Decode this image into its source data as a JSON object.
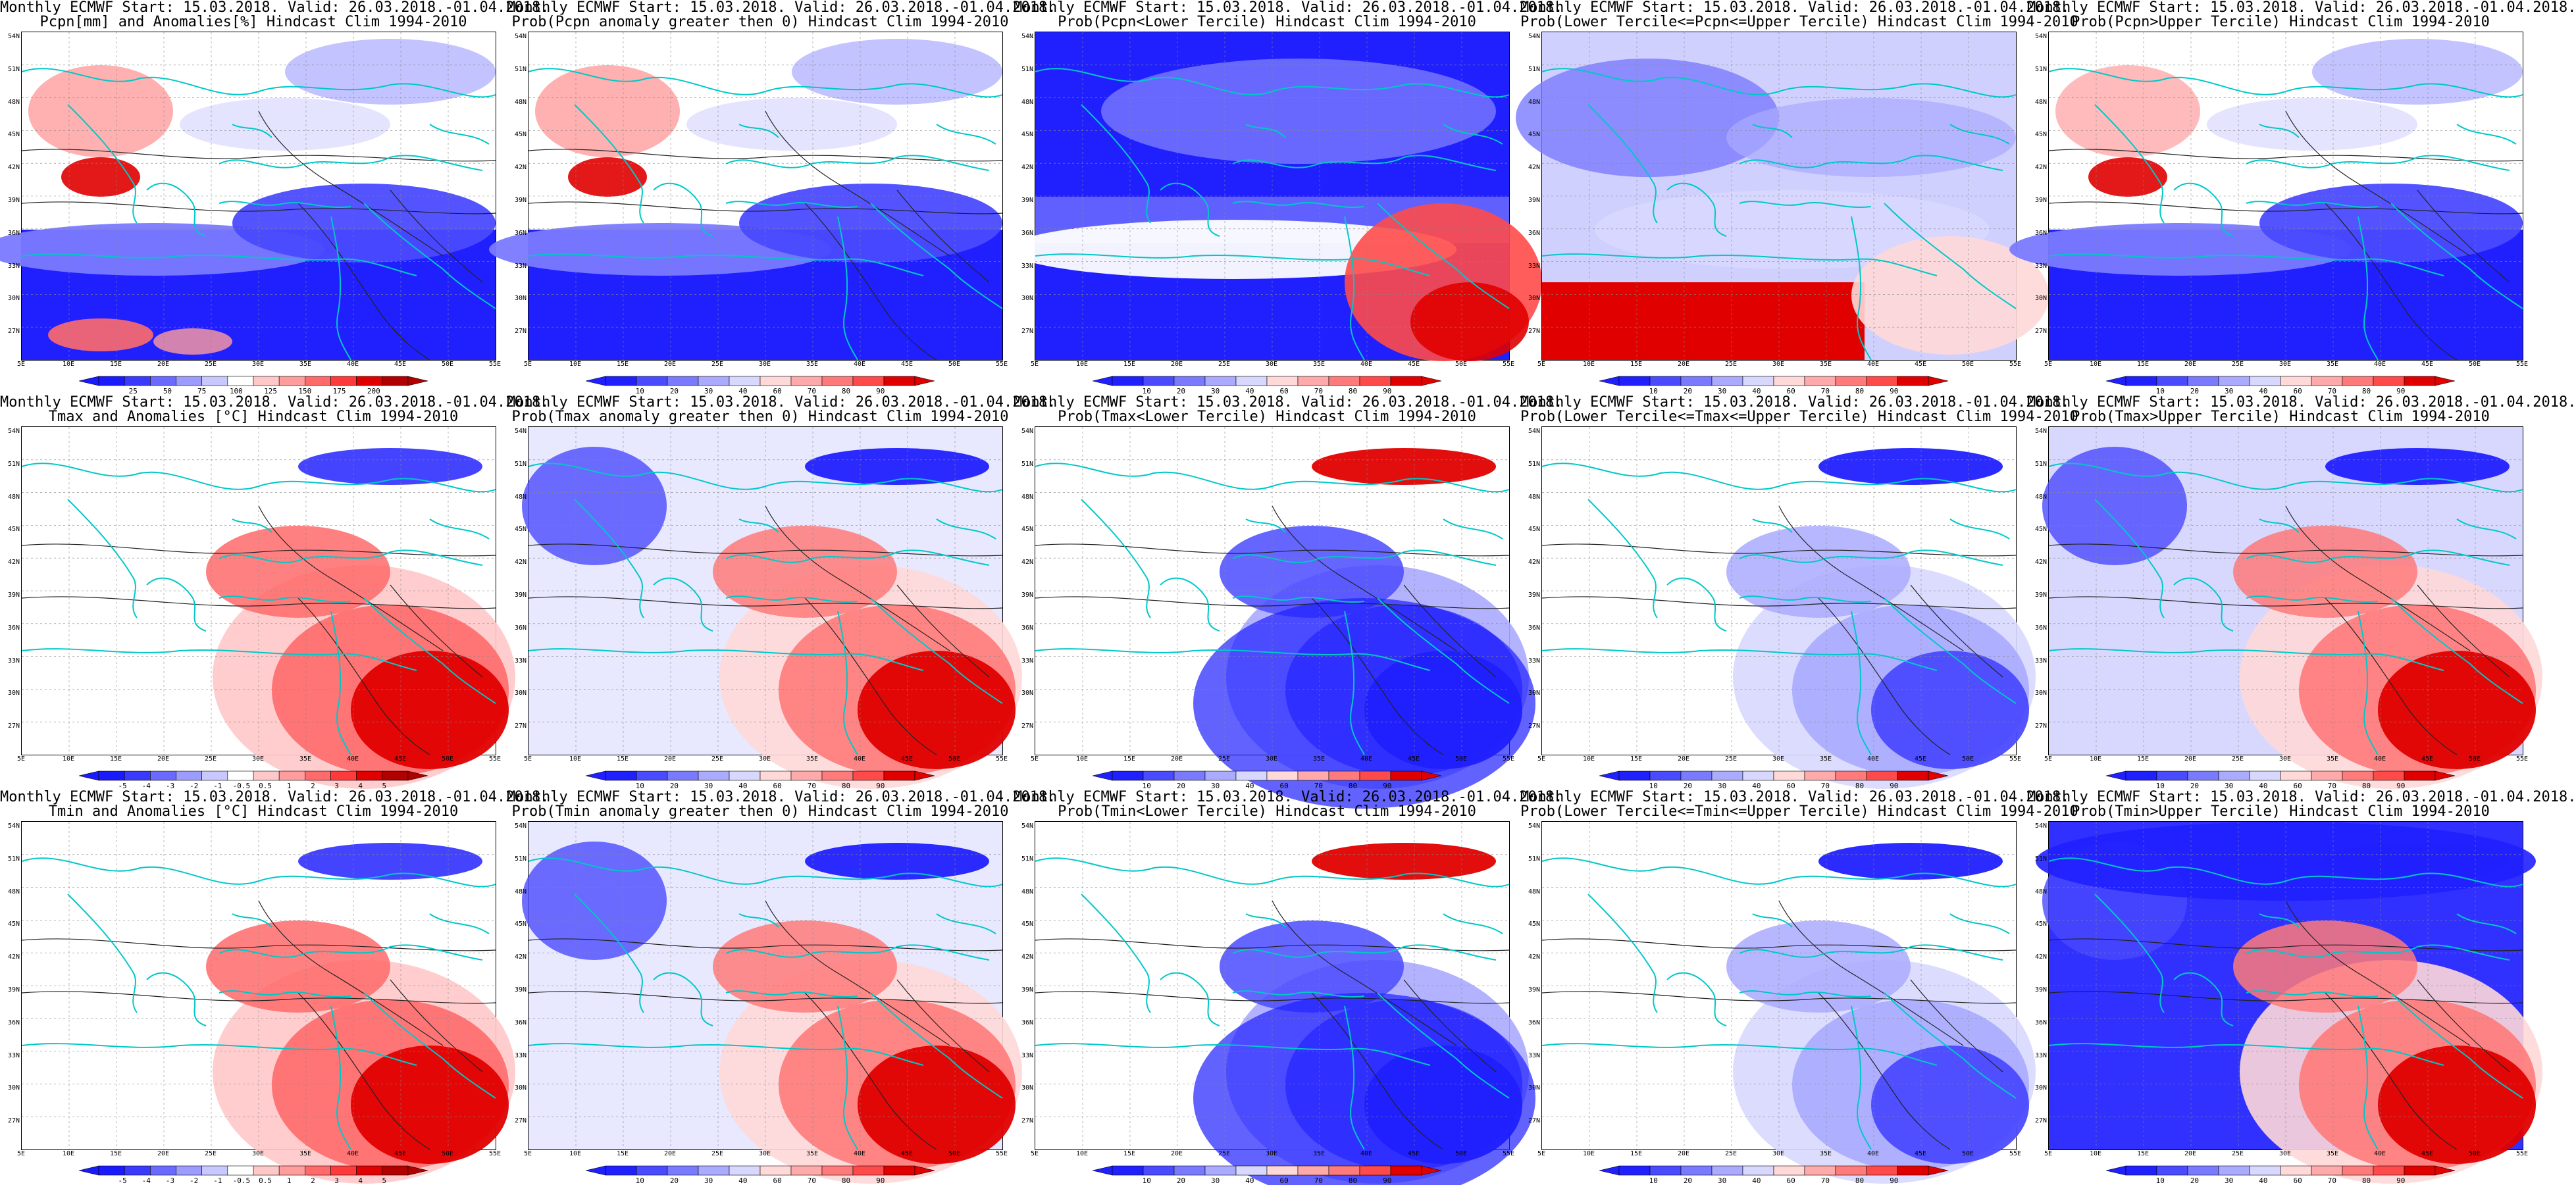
{
  "palettes": {
    "anom": [
      "#1a1aff",
      "#3a3aff",
      "#6a6aff",
      "#9c9cff",
      "#c8c8ff",
      "#ffffff",
      "#ffc8c8",
      "#ff9c9c",
      "#ff6a6a",
      "#ff3a3a",
      "#e00000",
      "#b00000"
    ],
    "prob": [
      "#2020ff",
      "#4a4aff",
      "#7a7aff",
      "#aaaaff",
      "#d8d8ff",
      "#ffd8d8",
      "#ffaaaa",
      "#ff7a7a",
      "#ff4a4a",
      "#e00000"
    ],
    "coast": "#00c8c8",
    "contour": "#222222"
  },
  "lat_labels": [
    "54N",
    "51N",
    "48N",
    "45N",
    "42N",
    "39N",
    "36N",
    "33N",
    "30N",
    "27N"
  ],
  "lon_labels": [
    "5E",
    "10E",
    "15E",
    "20E",
    "25E",
    "30E",
    "35E",
    "40E",
    "45E",
    "50E",
    "55E"
  ],
  "panels": [
    {
      "t1": "Monthly ECMWF Start: 15.03.2018. Valid: 26.03.2018.-01.04.2018.",
      "t2": "Pcpn[mm] and Anomalies[%] Hindcast Clim 1994-2010",
      "scheme": "pcpn_anom",
      "cbar_type": "anom",
      "cbar_ticks": [
        "25",
        "50",
        "75",
        "100",
        "125",
        "150",
        "175",
        "200"
      ]
    },
    {
      "t1": "Monthly ECMWF Start: 15.03.2018. Valid: 26.03.2018.-01.04.2018.",
      "t2": "Prob(Pcpn anomaly greater then 0) Hindcast Clim 1994-2010",
      "scheme": "pcpn_pos",
      "cbar_type": "prob",
      "cbar_ticks": [
        "10",
        "20",
        "30",
        "40",
        "60",
        "70",
        "80",
        "90"
      ]
    },
    {
      "t1": "Monthly ECMWF Start: 15.03.2018. Valid: 26.03.2018.-01.04.2018.",
      "t2": "Prob(Pcpn<Lower Tercile) Hindcast Clim 1994-2010",
      "scheme": "pcpn_low",
      "cbar_type": "prob",
      "cbar_ticks": [
        "10",
        "20",
        "30",
        "40",
        "60",
        "70",
        "80",
        "90"
      ]
    },
    {
      "t1": "Monthly ECMWF Start: 15.03.2018. Valid: 26.03.2018.-01.04.2018.",
      "t2": "Prob(Lower Tercile<=Pcpn<=Upper Tercile) Hindcast Clim 1994-2010",
      "scheme": "pcpn_mid",
      "cbar_type": "prob",
      "cbar_ticks": [
        "10",
        "20",
        "30",
        "40",
        "60",
        "70",
        "80",
        "90"
      ]
    },
    {
      "t1": "Monthly ECMWF Start: 15.03.2018. Valid: 26.03.2018.-01.04.2018.",
      "t2": "Prob(Pcpn>Upper Tercile) Hindcast Clim 1994-2010",
      "scheme": "pcpn_high",
      "cbar_type": "prob",
      "cbar_ticks": [
        "10",
        "20",
        "30",
        "40",
        "60",
        "70",
        "80",
        "90"
      ]
    },
    {
      "t1": "Monthly ECMWF Start: 15.03.2018. Valid: 26.03.2018.-01.04.2018.",
      "t2": "Tmax and Anomalies [°C] Hindcast Clim 1994-2010",
      "scheme": "t_anom",
      "cbar_type": "anom",
      "cbar_ticks": [
        "-5",
        "-4",
        "-3",
        "-2",
        "-1",
        "-0.5",
        "0.5",
        "1",
        "2",
        "3",
        "4",
        "5"
      ]
    },
    {
      "t1": "Monthly ECMWF Start: 15.03.2018. Valid: 26.03.2018.-01.04.2018.",
      "t2": "Prob(Tmax anomaly greater then 0) Hindcast Clim 1994-2010",
      "scheme": "t_pos",
      "cbar_type": "prob",
      "cbar_ticks": [
        "10",
        "20",
        "30",
        "40",
        "60",
        "70",
        "80",
        "90"
      ]
    },
    {
      "t1": "Monthly ECMWF Start: 15.03.2018. Valid: 26.03.2018.-01.04.2018.",
      "t2": "Prob(Tmax<Lower Tercile) Hindcast Clim 1994-2010",
      "scheme": "t_low",
      "cbar_type": "prob",
      "cbar_ticks": [
        "10",
        "20",
        "30",
        "40",
        "60",
        "70",
        "80",
        "90"
      ]
    },
    {
      "t1": "Monthly ECMWF Start: 15.03.2018. Valid: 26.03.2018.-01.04.2018.",
      "t2": "Prob(Lower Tercile<=Tmax<=Upper Tercile) Hindcast Clim 1994-2010",
      "scheme": "t_mid",
      "cbar_type": "prob",
      "cbar_ticks": [
        "10",
        "20",
        "30",
        "40",
        "60",
        "70",
        "80",
        "90"
      ]
    },
    {
      "t1": "Monthly ECMWF Start: 15.03.2018. Valid: 26.03.2018.-01.04.2018.",
      "t2": "Prob(Tmax>Upper Tercile) Hindcast Clim 1994-2010",
      "scheme": "t_high",
      "cbar_type": "prob",
      "cbar_ticks": [
        "10",
        "20",
        "30",
        "40",
        "60",
        "70",
        "80",
        "90"
      ]
    },
    {
      "t1": "Monthly ECMWF Start: 15.03.2018. Valid: 26.03.2018.-01.04.2018.",
      "t2": "Tmin and Anomalies [°C] Hindcast Clim 1994-2010",
      "scheme": "tmin_anom",
      "cbar_type": "anom",
      "cbar_ticks": [
        "-5",
        "-4",
        "-3",
        "-2",
        "-1",
        "-0.5",
        "0.5",
        "1",
        "2",
        "3",
        "4",
        "5"
      ]
    },
    {
      "t1": "Monthly ECMWF Start: 15.03.2018. Valid: 26.03.2018.-01.04.2018.",
      "t2": "Prob(Tmin anomaly greater then 0) Hindcast Clim 1994-2010",
      "scheme": "tmin_pos",
      "cbar_type": "prob",
      "cbar_ticks": [
        "10",
        "20",
        "30",
        "40",
        "60",
        "70",
        "80",
        "90"
      ]
    },
    {
      "t1": "Monthly ECMWF Start: 15.03.2018. Valid: 26.03.2018.-01.04.2018.",
      "t2": "Prob(Tmin<Lower Tercile) Hindcast Clim 1994-2010",
      "scheme": "tmin_low",
      "cbar_type": "prob",
      "cbar_ticks": [
        "10",
        "20",
        "30",
        "40",
        "60",
        "70",
        "80",
        "90"
      ]
    },
    {
      "t1": "Monthly ECMWF Start: 15.03.2018. Valid: 26.03.2018.-01.04.2018.",
      "t2": "Prob(Lower Tercile<=Tmin<=Upper Tercile) Hindcast Clim 1994-2010",
      "scheme": "tmin_mid",
      "cbar_type": "prob",
      "cbar_ticks": [
        "10",
        "20",
        "30",
        "40",
        "60",
        "70",
        "80",
        "90"
      ]
    },
    {
      "t1": "Monthly ECMWF Start: 15.03.2018. Valid: 26.03.2018.-01.04.2018.",
      "t2": "Prob(Tmin>Upper Tercile) Hindcast Clim 1994-2010",
      "scheme": "tmin_high",
      "cbar_type": "prob",
      "cbar_ticks": [
        "10",
        "20",
        "30",
        "40",
        "60",
        "70",
        "80",
        "90"
      ]
    }
  ]
}
